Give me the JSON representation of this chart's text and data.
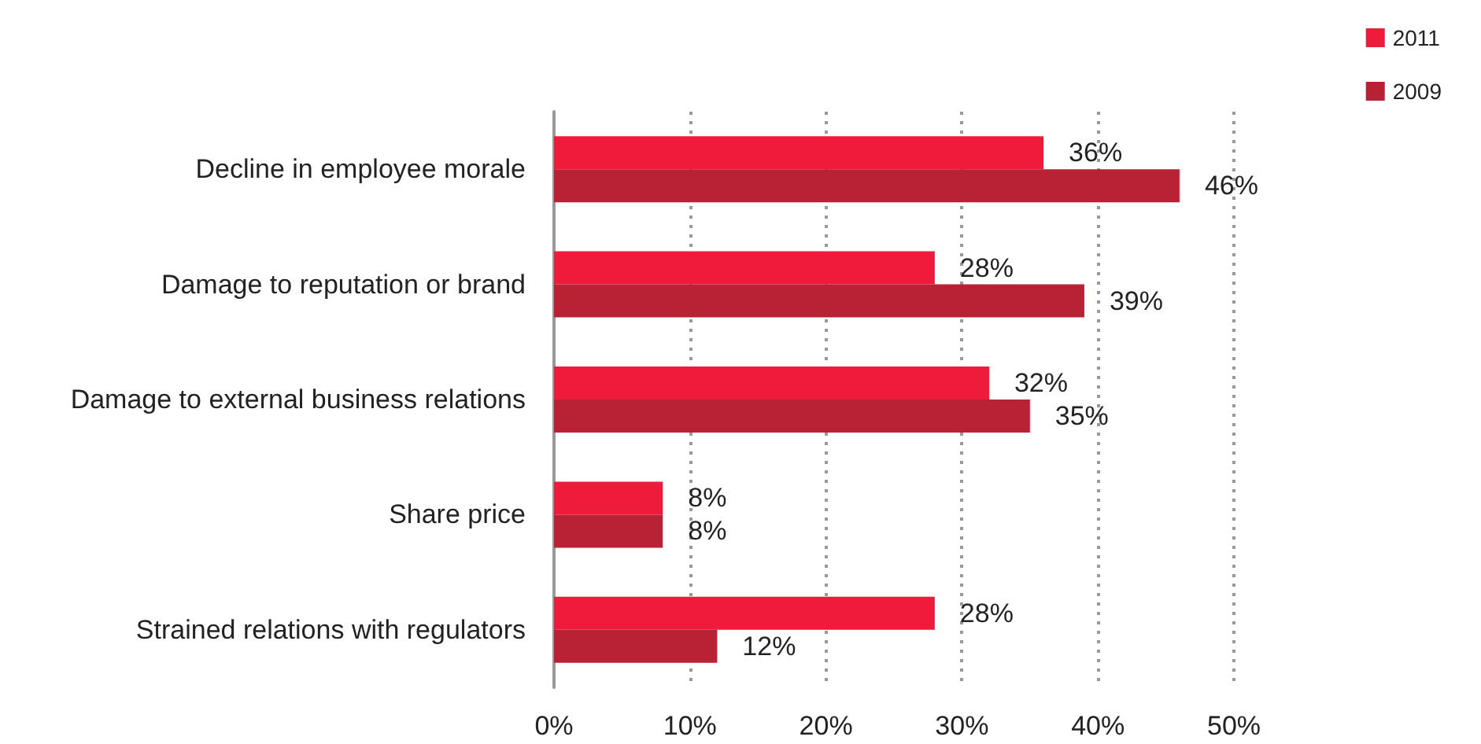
{
  "chart_data": {
    "type": "bar",
    "orientation": "horizontal",
    "categories": [
      "Decline in employee morale",
      "Damage to reputation or brand",
      "Damage to external business relations",
      "Share price",
      "Strained relations with regulators"
    ],
    "series": [
      {
        "name": "2011",
        "color": "#ee1c3a",
        "values": [
          36,
          28,
          32,
          8,
          28
        ],
        "value_labels": [
          "36%",
          "28%",
          "32%",
          "8%",
          "28%"
        ]
      },
      {
        "name": "2009",
        "color": "#b82234",
        "values": [
          46,
          39,
          35,
          8,
          12
        ],
        "value_labels": [
          "46%",
          "39%",
          "35%",
          "8%",
          "12%"
        ]
      }
    ],
    "xlim": [
      0,
      50
    ],
    "xticks": [
      {
        "value": 0,
        "label": "0%"
      },
      {
        "value": 10,
        "label": "10%"
      },
      {
        "value": 20,
        "label": "20%"
      },
      {
        "value": 30,
        "label": "30%"
      },
      {
        "value": 40,
        "label": "40%"
      },
      {
        "value": 50,
        "label": "50%"
      }
    ],
    "grid": "x",
    "legend": "top right"
  }
}
